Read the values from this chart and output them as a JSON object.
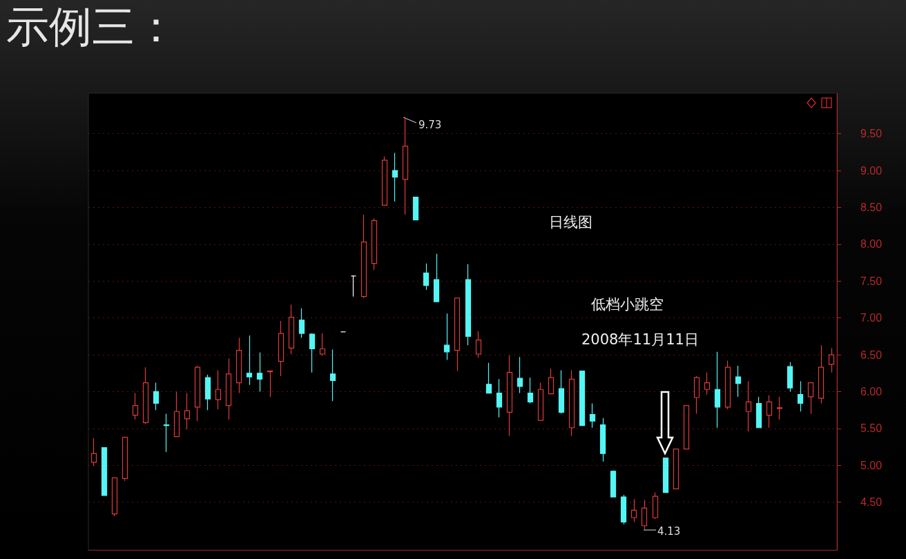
{
  "chart_data": {
    "type": "candlestick",
    "title": "示例三：",
    "subtitle": "日线图",
    "categories": [
      null,
      null,
      null,
      null,
      null,
      null,
      null,
      null,
      null,
      null,
      null,
      null,
      null,
      null,
      null,
      null,
      null,
      null,
      null,
      null,
      null,
      null,
      null,
      null,
      null,
      null,
      null,
      null,
      null,
      null,
      null,
      null,
      null,
      null,
      null,
      null,
      null,
      null,
      null,
      null,
      null,
      null,
      null,
      null,
      null,
      null,
      null,
      null,
      null,
      null,
      null,
      null,
      null,
      null,
      null,
      null,
      null,
      null,
      null,
      null,
      null,
      null,
      null,
      null,
      null,
      null,
      null,
      null,
      null,
      null,
      null,
      null
    ],
    "ohlc": [
      [
        5.04,
        5.37,
        4.99,
        5.16
      ],
      [
        5.24,
        5.24,
        4.59,
        4.59
      ],
      [
        4.34,
        4.83,
        4.31,
        4.83
      ],
      [
        4.82,
        5.38,
        4.79,
        5.38
      ],
      [
        5.68,
        5.98,
        5.62,
        5.81
      ],
      [
        5.58,
        6.33,
        5.56,
        6.12
      ],
      [
        6.0,
        6.12,
        5.75,
        5.84
      ],
      [
        5.55,
        5.7,
        5.18,
        5.54
      ],
      [
        5.39,
        6.0,
        5.39,
        5.73
      ],
      [
        5.63,
        5.98,
        5.49,
        5.74
      ],
      [
        5.79,
        6.35,
        5.6,
        6.33
      ],
      [
        6.19,
        6.23,
        5.75,
        5.9
      ],
      [
        5.89,
        6.29,
        5.76,
        6.03
      ],
      [
        5.81,
        6.45,
        5.62,
        6.24
      ],
      [
        6.12,
        6.73,
        5.98,
        6.56
      ],
      [
        6.25,
        6.76,
        6.09,
        6.2
      ],
      [
        6.25,
        6.53,
        6.0,
        6.17
      ],
      [
        6.27,
        6.28,
        5.93,
        6.28
      ],
      [
        6.41,
        6.96,
        6.21,
        6.79
      ],
      [
        6.59,
        7.18,
        6.51,
        7.01
      ],
      [
        6.97,
        7.13,
        6.73,
        6.79
      ],
      [
        6.78,
        6.79,
        6.26,
        6.58
      ],
      [
        6.51,
        6.79,
        6.49,
        6.58
      ],
      [
        6.24,
        6.57,
        5.87,
        6.15
      ],
      [
        6.81,
        6.81,
        6.81,
        6.81
      ],
      [
        7.57,
        7.57,
        7.29,
        7.57
      ],
      [
        7.29,
        8.4,
        7.27,
        8.03
      ],
      [
        7.74,
        8.35,
        7.65,
        8.32
      ],
      [
        8.53,
        9.19,
        8.53,
        9.14
      ],
      [
        9.0,
        9.24,
        8.58,
        8.91
      ],
      [
        8.88,
        9.73,
        8.4,
        9.33
      ],
      [
        8.64,
        8.64,
        8.33,
        8.33
      ],
      [
        7.61,
        7.74,
        7.38,
        7.44
      ],
      [
        7.52,
        7.87,
        7.22,
        7.22
      ],
      [
        6.63,
        7.06,
        6.43,
        6.54
      ],
      [
        6.56,
        7.27,
        6.28,
        7.27
      ],
      [
        7.52,
        7.73,
        6.63,
        6.75
      ],
      [
        6.51,
        6.82,
        6.46,
        6.7
      ],
      [
        6.1,
        6.39,
        5.98,
        5.98
      ],
      [
        5.98,
        6.17,
        5.65,
        5.79
      ],
      [
        5.72,
        6.49,
        5.4,
        6.26
      ],
      [
        6.18,
        6.47,
        5.98,
        6.07
      ],
      [
        5.98,
        6.19,
        5.84,
        5.86
      ],
      [
        5.61,
        6.12,
        5.61,
        6.03
      ],
      [
        5.97,
        6.31,
        5.97,
        6.19
      ],
      [
        6.04,
        6.29,
        5.7,
        5.72
      ],
      [
        5.51,
        6.29,
        5.4,
        6.17
      ],
      [
        6.28,
        6.28,
        5.54,
        5.54
      ],
      [
        5.69,
        5.84,
        5.51,
        5.6
      ],
      [
        5.55,
        5.64,
        5.05,
        5.16
      ],
      [
        4.92,
        4.93,
        4.57,
        4.57
      ],
      [
        4.57,
        4.6,
        4.2,
        4.23
      ],
      [
        4.29,
        4.54,
        4.23,
        4.39
      ],
      [
        4.18,
        4.53,
        4.13,
        4.42
      ],
      [
        4.29,
        4.63,
        4.27,
        4.58
      ],
      [
        5.1,
        5.1,
        4.63,
        4.63
      ],
      [
        4.68,
        5.22,
        4.68,
        5.22
      ],
      [
        5.22,
        5.81,
        5.22,
        5.81
      ],
      [
        5.92,
        6.21,
        5.7,
        6.19
      ],
      [
        6.03,
        6.26,
        5.96,
        6.12
      ],
      [
        6.03,
        6.54,
        5.51,
        5.79
      ],
      [
        5.79,
        6.42,
        5.76,
        6.33
      ],
      [
        6.2,
        6.35,
        5.93,
        6.11
      ],
      [
        5.73,
        6.14,
        5.46,
        5.86
      ],
      [
        5.84,
        5.93,
        5.51,
        5.51
      ],
      [
        5.68,
        5.95,
        5.51,
        5.86
      ],
      [
        5.77,
        5.93,
        5.62,
        5.78
      ],
      [
        6.34,
        6.4,
        6.0,
        6.05
      ],
      [
        5.96,
        6.14,
        5.73,
        5.84
      ],
      [
        5.93,
        6.12,
        5.7,
        6.12
      ],
      [
        5.91,
        6.63,
        5.84,
        6.33
      ],
      [
        6.37,
        6.59,
        6.26,
        6.5
      ]
    ],
    "colors": [
      "#e03a3a",
      "#54f5f5",
      "#e03a3a",
      "#e03a3a",
      "#e03a3a",
      "#e03a3a",
      "#54f5f5",
      "#54f5f5",
      "#e03a3a",
      "#e03a3a",
      "#e03a3a",
      "#54f5f5",
      "#e03a3a",
      "#e03a3a",
      "#e03a3a",
      "#54f5f5",
      "#54f5f5",
      "#e03a3a",
      "#e03a3a",
      "#e03a3a",
      "#54f5f5",
      "#54f5f5",
      "#e03a3a",
      "#54f5f5",
      "#ffffff",
      "#ffffff",
      "#e03a3a",
      "#e03a3a",
      "#e03a3a",
      "#54f5f5",
      "#e03a3a",
      "#54f5f5",
      "#54f5f5",
      "#54f5f5",
      "#54f5f5",
      "#e03a3a",
      "#54f5f5",
      "#e03a3a",
      "#54f5f5",
      "#54f5f5",
      "#e03a3a",
      "#54f5f5",
      "#54f5f5",
      "#e03a3a",
      "#e03a3a",
      "#54f5f5",
      "#e03a3a",
      "#54f5f5",
      "#54f5f5",
      "#54f5f5",
      "#54f5f5",
      "#54f5f5",
      "#e03a3a",
      "#e03a3a",
      "#e03a3a",
      "#54f5f5",
      "#e03a3a",
      "#e03a3a",
      "#e03a3a",
      "#e03a3a",
      "#54f5f5",
      "#e03a3a",
      "#54f5f5",
      "#e03a3a",
      "#54f5f5",
      "#e03a3a",
      "#e03a3a",
      "#54f5f5",
      "#54f5f5",
      "#e03a3a",
      "#e03a3a",
      "#e03a3a"
    ],
    "ylim": [
      3.85,
      10.05
    ],
    "yticks": [
      {
        "value": 4.5,
        "label": "4.50"
      },
      {
        "value": 5,
        "label": "5.00"
      },
      {
        "value": 5.5,
        "label": "5.50"
      },
      {
        "value": 6,
        "label": "6.00"
      },
      {
        "value": 6.5,
        "label": "6.50"
      },
      {
        "value": 7,
        "label": "7.00"
      },
      {
        "value": 7.5,
        "label": "7.50"
      },
      {
        "value": 8,
        "label": "8.00"
      },
      {
        "value": 8.5,
        "label": "8.50"
      },
      {
        "value": 9,
        "label": "9.00"
      },
      {
        "value": 9.5,
        "label": "9.50"
      }
    ],
    "grid": "y",
    "annotations": [
      "9.73",
      "4.13",
      "低档小跳空",
      "2008年11月11日"
    ]
  }
}
